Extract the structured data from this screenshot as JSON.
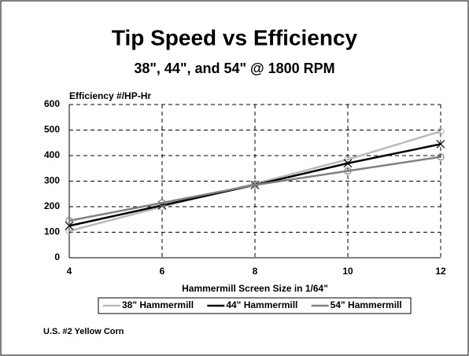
{
  "chart_data": {
    "type": "line",
    "title": "Tip Speed vs Efficiency",
    "subtitle": "38\", 44\", and 54\" @ 1800 RPM",
    "y_label": "Efficiency #/HP-Hr",
    "x_label": "Hammermill Screen Size in 1/64\"",
    "note": "U.S. #2 Yellow Corn",
    "x": [
      4,
      6,
      8,
      10,
      12
    ],
    "series": [
      {
        "name": "38\" Hammermill",
        "color": "#bbbbbb",
        "values": [
          105,
          200,
          290,
          385,
          495
        ]
      },
      {
        "name": "44\" Hammermill",
        "color": "#000000",
        "values": [
          125,
          205,
          285,
          370,
          445
        ]
      },
      {
        "name": "54\" Hammermill",
        "color": "#808080",
        "values": [
          145,
          215,
          285,
          340,
          395
        ]
      }
    ],
    "xlim": [
      4,
      12
    ],
    "xticks": [
      4,
      6,
      8,
      10,
      12
    ],
    "ylim": [
      0,
      600
    ],
    "yticks": [
      0,
      100,
      200,
      300,
      400,
      500,
      600
    ],
    "grid": true,
    "legend": "bottom"
  }
}
